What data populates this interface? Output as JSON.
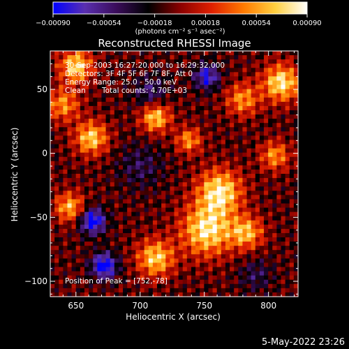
{
  "chart_data": {
    "type": "heatmap",
    "title": "Reconstructed RHESSI Image",
    "xlabel": "Heliocentric X (arcsec)",
    "ylabel": "Heliocentric Y (arcsec)",
    "xlim": [
      630,
      823
    ],
    "ylim": [
      -112,
      80
    ],
    "x_ticks": [
      650,
      700,
      750,
      800
    ],
    "x_tick_labels": [
      "650",
      "700",
      "750",
      "800"
    ],
    "y_ticks": [
      -100,
      -50,
      0,
      50
    ],
    "y_tick_labels": [
      "−100",
      "−50",
      "0",
      "50"
    ],
    "colorbar": {
      "min": -0.0009,
      "max": 0.0009,
      "ticks": [
        "−0.00090",
        "−0.00054",
        "−0.00018",
        "0.00018",
        "0.00054",
        "0.00090"
      ],
      "unit_label": "(photons cm⁻² s⁻¹ asec⁻²)",
      "colormap": [
        "#0000ff",
        "#5a2fb0",
        "#3a0c5a",
        "#000000",
        "#8a0000",
        "#e02000",
        "#ff7a00",
        "#ffd040",
        "#ffffff"
      ]
    },
    "annotations": {
      "time_range": "30-Sep-2003 16:27:20.000 to 16:29:32.000",
      "detectors": "Detectors: 3F 4F 5F 6F 7F 8F, Att 0",
      "energy_range": "Energy Range: 25.0 - 50.0 keV",
      "method": "Clean",
      "total_counts": "Total counts: 4.70E+03",
      "peak": "Position of Peak = [752,-78]"
    },
    "intensity_sources": [
      {
        "x": 650,
        "y": 68,
        "amp": 0.00085,
        "sigma": 9
      },
      {
        "x": 640,
        "y": 38,
        "amp": 0.0006,
        "sigma": 9
      },
      {
        "x": 662,
        "y": 12,
        "amp": 0.0008,
        "sigma": 9
      },
      {
        "x": 645,
        "y": -42,
        "amp": 0.0007,
        "sigma": 8
      },
      {
        "x": 712,
        "y": 28,
        "amp": 0.0008,
        "sigma": 8
      },
      {
        "x": 738,
        "y": 10,
        "amp": 0.0006,
        "sigma": 7
      },
      {
        "x": 780,
        "y": 42,
        "amp": 0.0006,
        "sigma": 9
      },
      {
        "x": 810,
        "y": 55,
        "amp": 0.0009,
        "sigma": 10
      },
      {
        "x": 805,
        "y": -2,
        "amp": 0.0006,
        "sigma": 8
      },
      {
        "x": 762,
        "y": -30,
        "amp": 0.0009,
        "sigma": 12
      },
      {
        "x": 752,
        "y": -60,
        "amp": 0.0009,
        "sigma": 14
      },
      {
        "x": 712,
        "y": -82,
        "amp": 0.0008,
        "sigma": 10
      },
      {
        "x": 783,
        "y": -62,
        "amp": 0.0007,
        "sigma": 9
      },
      {
        "x": 663,
        "y": -53,
        "amp": -0.0009,
        "sigma": 7
      },
      {
        "x": 672,
        "y": -88,
        "amp": -0.0009,
        "sigma": 7
      },
      {
        "x": 752,
        "y": 60,
        "amp": -0.0007,
        "sigma": 7
      },
      {
        "x": 708,
        "y": 48,
        "amp": -0.0004,
        "sigma": 9
      },
      {
        "x": 700,
        "y": -10,
        "amp": -0.0003,
        "sigma": 12
      },
      {
        "x": 790,
        "y": -95,
        "amp": -0.0003,
        "sigma": 9
      }
    ]
  },
  "footer": {
    "date": "5-May-2022 23:26"
  }
}
